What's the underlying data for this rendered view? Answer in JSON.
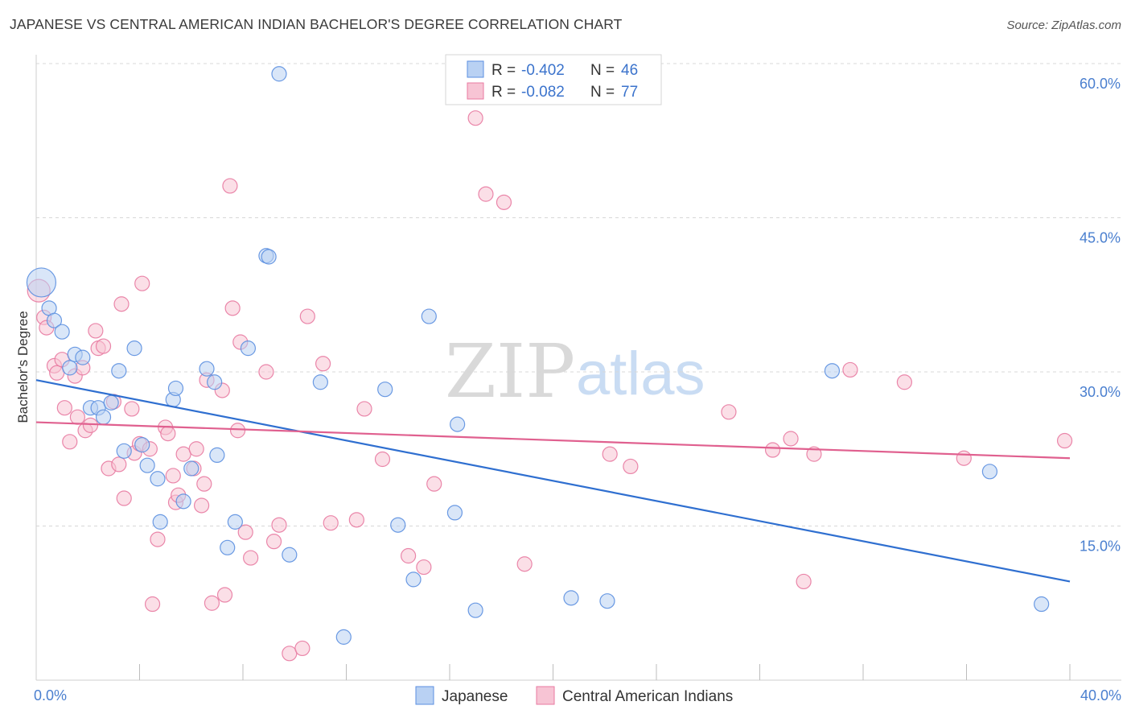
{
  "title": "JAPANESE VS CENTRAL AMERICAN INDIAN BACHELOR'S DEGREE CORRELATION CHART",
  "source": "Source: ZipAtlas.com",
  "watermark": {
    "zip": "ZIP",
    "atlas": "atlas"
  },
  "colors": {
    "blue": "#5b8fe0",
    "blue_fill": "#b9d1f3",
    "pink": "#e87aa1",
    "pink_fill": "#f7c4d4",
    "blue_line": "#2f6fd0",
    "pink_line": "#e0608f",
    "grid": "#d8d8d8",
    "axis_text": "#4a7fcf"
  },
  "legend": {
    "rows": [
      {
        "r_label": "R = ",
        "r_value": "-0.402",
        "n_label": "N = ",
        "n_value": "46"
      },
      {
        "r_label": "R = ",
        "r_value": "-0.082",
        "n_label": "N = ",
        "n_value": "77"
      }
    ]
  },
  "chart_data": {
    "type": "scatter",
    "title": "JAPANESE VS CENTRAL AMERICAN INDIAN BACHELOR'S DEGREE CORRELATION CHART",
    "xlabel": "",
    "ylabel": "Bachelor's Degree",
    "xlim": [
      0,
      40
    ],
    "ylim": [
      0,
      60
    ],
    "x_tick_labels": [
      "0.0%",
      "40.0%"
    ],
    "y_ticks": [
      15,
      30,
      45,
      60
    ],
    "y_tick_labels": [
      "15.0%",
      "30.0%",
      "45.0%",
      "60.0%"
    ],
    "grid": true,
    "legend_position": "top-center",
    "series": [
      {
        "name": "Japanese",
        "color": "#5b8fe0",
        "trend": {
          "x": [
            0,
            40
          ],
          "y": [
            29.2,
            9.6
          ]
        },
        "points": [
          [
            0.2,
            38.7
          ],
          [
            0.5,
            36.2
          ],
          [
            0.7,
            35.0
          ],
          [
            1.0,
            33.9
          ],
          [
            1.3,
            30.4
          ],
          [
            1.5,
            31.7
          ],
          [
            1.8,
            31.4
          ],
          [
            2.1,
            26.5
          ],
          [
            2.4,
            26.5
          ],
          [
            2.6,
            25.6
          ],
          [
            2.9,
            27.0
          ],
          [
            3.2,
            30.1
          ],
          [
            3.4,
            22.3
          ],
          [
            3.8,
            32.3
          ],
          [
            4.1,
            22.9
          ],
          [
            4.3,
            20.9
          ],
          [
            4.7,
            19.6
          ],
          [
            4.8,
            15.4
          ],
          [
            5.3,
            27.3
          ],
          [
            5.4,
            28.4
          ],
          [
            5.7,
            17.4
          ],
          [
            6.0,
            20.6
          ],
          [
            6.6,
            30.3
          ],
          [
            6.9,
            29.0
          ],
          [
            7.0,
            21.9
          ],
          [
            7.4,
            12.9
          ],
          [
            7.7,
            15.4
          ],
          [
            8.2,
            32.3
          ],
          [
            8.9,
            41.3
          ],
          [
            9.0,
            41.2
          ],
          [
            9.4,
            59.0
          ],
          [
            9.8,
            12.2
          ],
          [
            11.0,
            29.0
          ],
          [
            11.9,
            4.2
          ],
          [
            13.5,
            28.3
          ],
          [
            14.0,
            15.1
          ],
          [
            14.6,
            9.8
          ],
          [
            15.2,
            35.4
          ],
          [
            16.2,
            16.3
          ],
          [
            16.3,
            24.9
          ],
          [
            17.0,
            6.8
          ],
          [
            20.7,
            8.0
          ],
          [
            22.1,
            7.7
          ],
          [
            30.8,
            30.1
          ],
          [
            36.9,
            20.3
          ],
          [
            38.9,
            7.4
          ]
        ]
      },
      {
        "name": "Central American Indians",
        "color": "#e87aa1",
        "trend": {
          "x": [
            0,
            40
          ],
          "y": [
            25.1,
            21.6
          ]
        },
        "points": [
          [
            0.1,
            37.9
          ],
          [
            0.3,
            35.3
          ],
          [
            0.4,
            34.3
          ],
          [
            0.7,
            30.6
          ],
          [
            0.8,
            29.9
          ],
          [
            1.0,
            31.2
          ],
          [
            1.1,
            26.5
          ],
          [
            1.3,
            23.2
          ],
          [
            1.5,
            29.6
          ],
          [
            1.6,
            25.6
          ],
          [
            1.8,
            30.4
          ],
          [
            1.9,
            24.3
          ],
          [
            2.1,
            24.8
          ],
          [
            2.3,
            34.0
          ],
          [
            2.4,
            32.3
          ],
          [
            2.6,
            32.5
          ],
          [
            2.8,
            20.6
          ],
          [
            3.0,
            27.1
          ],
          [
            3.2,
            21.0
          ],
          [
            3.3,
            36.6
          ],
          [
            3.4,
            17.7
          ],
          [
            3.7,
            26.4
          ],
          [
            3.8,
            22.1
          ],
          [
            4.0,
            23.0
          ],
          [
            4.1,
            38.6
          ],
          [
            4.4,
            22.5
          ],
          [
            4.5,
            7.4
          ],
          [
            4.7,
            13.7
          ],
          [
            5.0,
            24.6
          ],
          [
            5.1,
            24.0
          ],
          [
            5.3,
            19.9
          ],
          [
            5.4,
            17.3
          ],
          [
            5.5,
            18.0
          ],
          [
            5.7,
            22.0
          ],
          [
            6.1,
            20.6
          ],
          [
            6.2,
            22.5
          ],
          [
            6.4,
            17.0
          ],
          [
            6.5,
            19.1
          ],
          [
            6.6,
            29.2
          ],
          [
            6.8,
            7.5
          ],
          [
            7.2,
            28.2
          ],
          [
            7.3,
            8.3
          ],
          [
            7.5,
            48.1
          ],
          [
            7.6,
            36.2
          ],
          [
            7.8,
            24.3
          ],
          [
            7.9,
            32.9
          ],
          [
            8.1,
            14.4
          ],
          [
            8.3,
            11.9
          ],
          [
            8.9,
            30.0
          ],
          [
            9.2,
            13.5
          ],
          [
            9.4,
            15.1
          ],
          [
            9.8,
            2.6
          ],
          [
            10.3,
            3.1
          ],
          [
            10.5,
            35.4
          ],
          [
            11.1,
            30.8
          ],
          [
            11.4,
            15.3
          ],
          [
            12.4,
            15.6
          ],
          [
            12.7,
            26.4
          ],
          [
            13.4,
            21.5
          ],
          [
            14.4,
            12.1
          ],
          [
            15.0,
            11.0
          ],
          [
            15.4,
            19.1
          ],
          [
            17.0,
            54.7
          ],
          [
            17.4,
            47.3
          ],
          [
            18.1,
            46.5
          ],
          [
            18.9,
            11.3
          ],
          [
            22.2,
            22.0
          ],
          [
            23.0,
            20.8
          ],
          [
            26.8,
            26.1
          ],
          [
            28.5,
            22.4
          ],
          [
            29.2,
            23.5
          ],
          [
            29.7,
            9.6
          ],
          [
            30.1,
            22.0
          ],
          [
            31.5,
            30.2
          ],
          [
            33.6,
            29.0
          ],
          [
            35.9,
            21.6
          ],
          [
            39.8,
            23.3
          ]
        ]
      }
    ]
  }
}
